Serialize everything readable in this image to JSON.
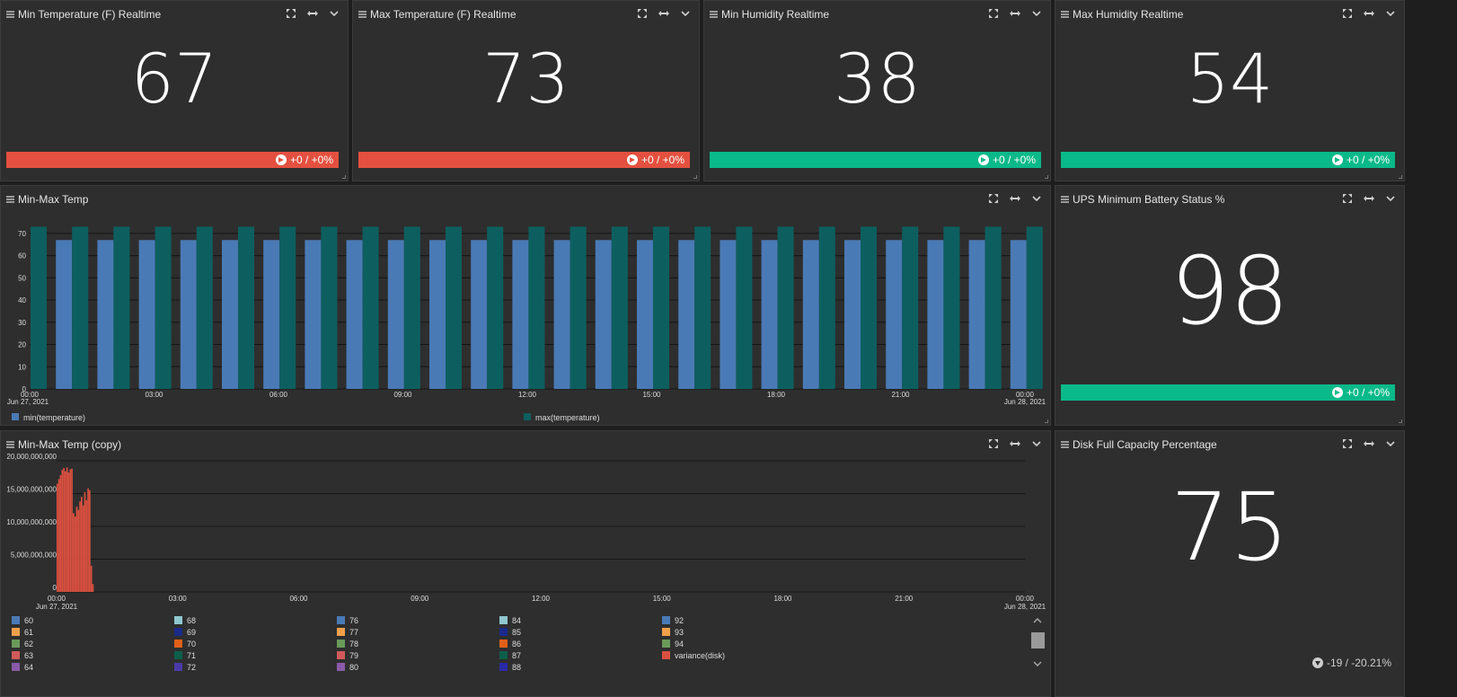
{
  "stats": [
    {
      "title": "Min Temperature (F) Realtime",
      "value": "67",
      "change": "+0 / +0%",
      "status": "red"
    },
    {
      "title": "Max Temperature (F) Realtime",
      "value": "73",
      "change": "+0 / +0%",
      "status": "red"
    },
    {
      "title": "Min Humidity Realtime",
      "value": "38",
      "change": "+0 / +0%",
      "status": "green"
    },
    {
      "title": "Max Humidity Realtime",
      "value": "54",
      "change": "+0 / +0%",
      "status": "green"
    }
  ],
  "ups": {
    "title": "UPS Minimum Battery Status %",
    "value": "98",
    "change": "+0 / +0%"
  },
  "disk": {
    "title": "Disk Full Capacity Percentage",
    "value": "75",
    "change": "-19 / -20.21%"
  },
  "colors": {
    "red": "#e4503f",
    "green": "#0ab98a",
    "min_series": "#4a7ab5",
    "max_series": "#0d5f5f",
    "variance": "#d9503f"
  },
  "icons": [
    "drag-handle-icon",
    "expand-icon",
    "resize-horizontal-icon",
    "chevron-down-icon",
    "arrow-right-circle-icon",
    "arrow-down-circle-icon"
  ],
  "chart_minmax": {
    "title": "Min-Max Temp",
    "chart_data": {
      "type": "bar",
      "x_ticks": [
        "00:00",
        "03:00",
        "06:00",
        "09:00",
        "12:00",
        "15:00",
        "18:00",
        "21:00",
        "00:00"
      ],
      "x_start_date": "Jun 27, 2021",
      "x_end_date": "Jun 28, 2021",
      "y_ticks": [
        0,
        10,
        20,
        30,
        40,
        50,
        60,
        70
      ],
      "ylim": [
        0,
        76
      ],
      "grid": true,
      "legend_position": "bottom",
      "series": [
        {
          "name": "min(temperature)",
          "values": [
            null,
            67,
            67,
            67,
            67,
            67,
            67,
            67,
            67,
            67,
            67,
            67,
            67,
            67,
            67,
            67,
            67,
            67,
            67,
            67,
            67,
            67,
            67,
            67,
            67
          ]
        },
        {
          "name": "max(temperature)",
          "values": [
            73,
            73,
            73,
            73,
            73,
            73,
            73,
            73,
            73,
            73,
            73,
            73,
            73,
            73,
            73,
            73,
            73,
            73,
            73,
            73,
            73,
            73,
            73,
            73,
            73
          ]
        }
      ]
    }
  },
  "chart_copy": {
    "title": "Min-Max Temp (copy)",
    "chart_data": {
      "type": "bar",
      "x_ticks": [
        "00:00",
        "03:00",
        "06:00",
        "09:00",
        "12:00",
        "15:00",
        "18:00",
        "21:00",
        "00:00"
      ],
      "x_start_date": "Jun 27, 2021",
      "x_end_date": "Jun 28, 2021",
      "y_ticks": [
        "0",
        "5,000,000,000",
        "10,000,000,000",
        "15,000,000,000",
        "20,000,000,000"
      ],
      "ylim": [
        0,
        20000000000
      ],
      "grid": true,
      "legend_position": "bottom",
      "series": [
        {
          "name": "variance(disk)",
          "values": [
            16500000000,
            17200000000,
            17800000000,
            18600000000,
            18900000000,
            18400000000,
            19000000000,
            18200000000,
            18700000000,
            18800000000,
            12000000000,
            11500000000,
            13000000000,
            12500000000,
            13800000000,
            14500000000,
            13200000000,
            15200000000,
            14000000000,
            15800000000,
            15500000000,
            4000000000,
            1200000000
          ]
        }
      ],
      "legend": [
        {
          "label": "60",
          "color": "#4a7ab5"
        },
        {
          "label": "61",
          "color": "#f0a04b"
        },
        {
          "label": "62",
          "color": "#6a9a5a"
        },
        {
          "label": "63",
          "color": "#d05a5a"
        },
        {
          "label": "64",
          "color": "#8a5aa8"
        },
        {
          "label": "68",
          "color": "#8ec8d0"
        },
        {
          "label": "69",
          "color": "#1a2a8a"
        },
        {
          "label": "70",
          "color": "#e0601a"
        },
        {
          "label": "71",
          "color": "#0d5f4a"
        },
        {
          "label": "72",
          "color": "#4a3aa8"
        },
        {
          "label": "76",
          "color": "#4a7ab5"
        },
        {
          "label": "77",
          "color": "#f0a04b"
        },
        {
          "label": "78",
          "color": "#6a9a5a"
        },
        {
          "label": "79",
          "color": "#d05a5a"
        },
        {
          "label": "80",
          "color": "#8a5aa8"
        },
        {
          "label": "84",
          "color": "#8ec8d0"
        },
        {
          "label": "85",
          "color": "#1a2a8a"
        },
        {
          "label": "86",
          "color": "#e0601a"
        },
        {
          "label": "87",
          "color": "#0d5f4a"
        },
        {
          "label": "88",
          "color": "#2a2aa8"
        },
        {
          "label": "92",
          "color": "#4a7ab5"
        },
        {
          "label": "93",
          "color": "#f0a04b"
        },
        {
          "label": "94",
          "color": "#6a9a5a"
        },
        {
          "label": "variance(disk)",
          "color": "#d9503f"
        }
      ]
    }
  }
}
